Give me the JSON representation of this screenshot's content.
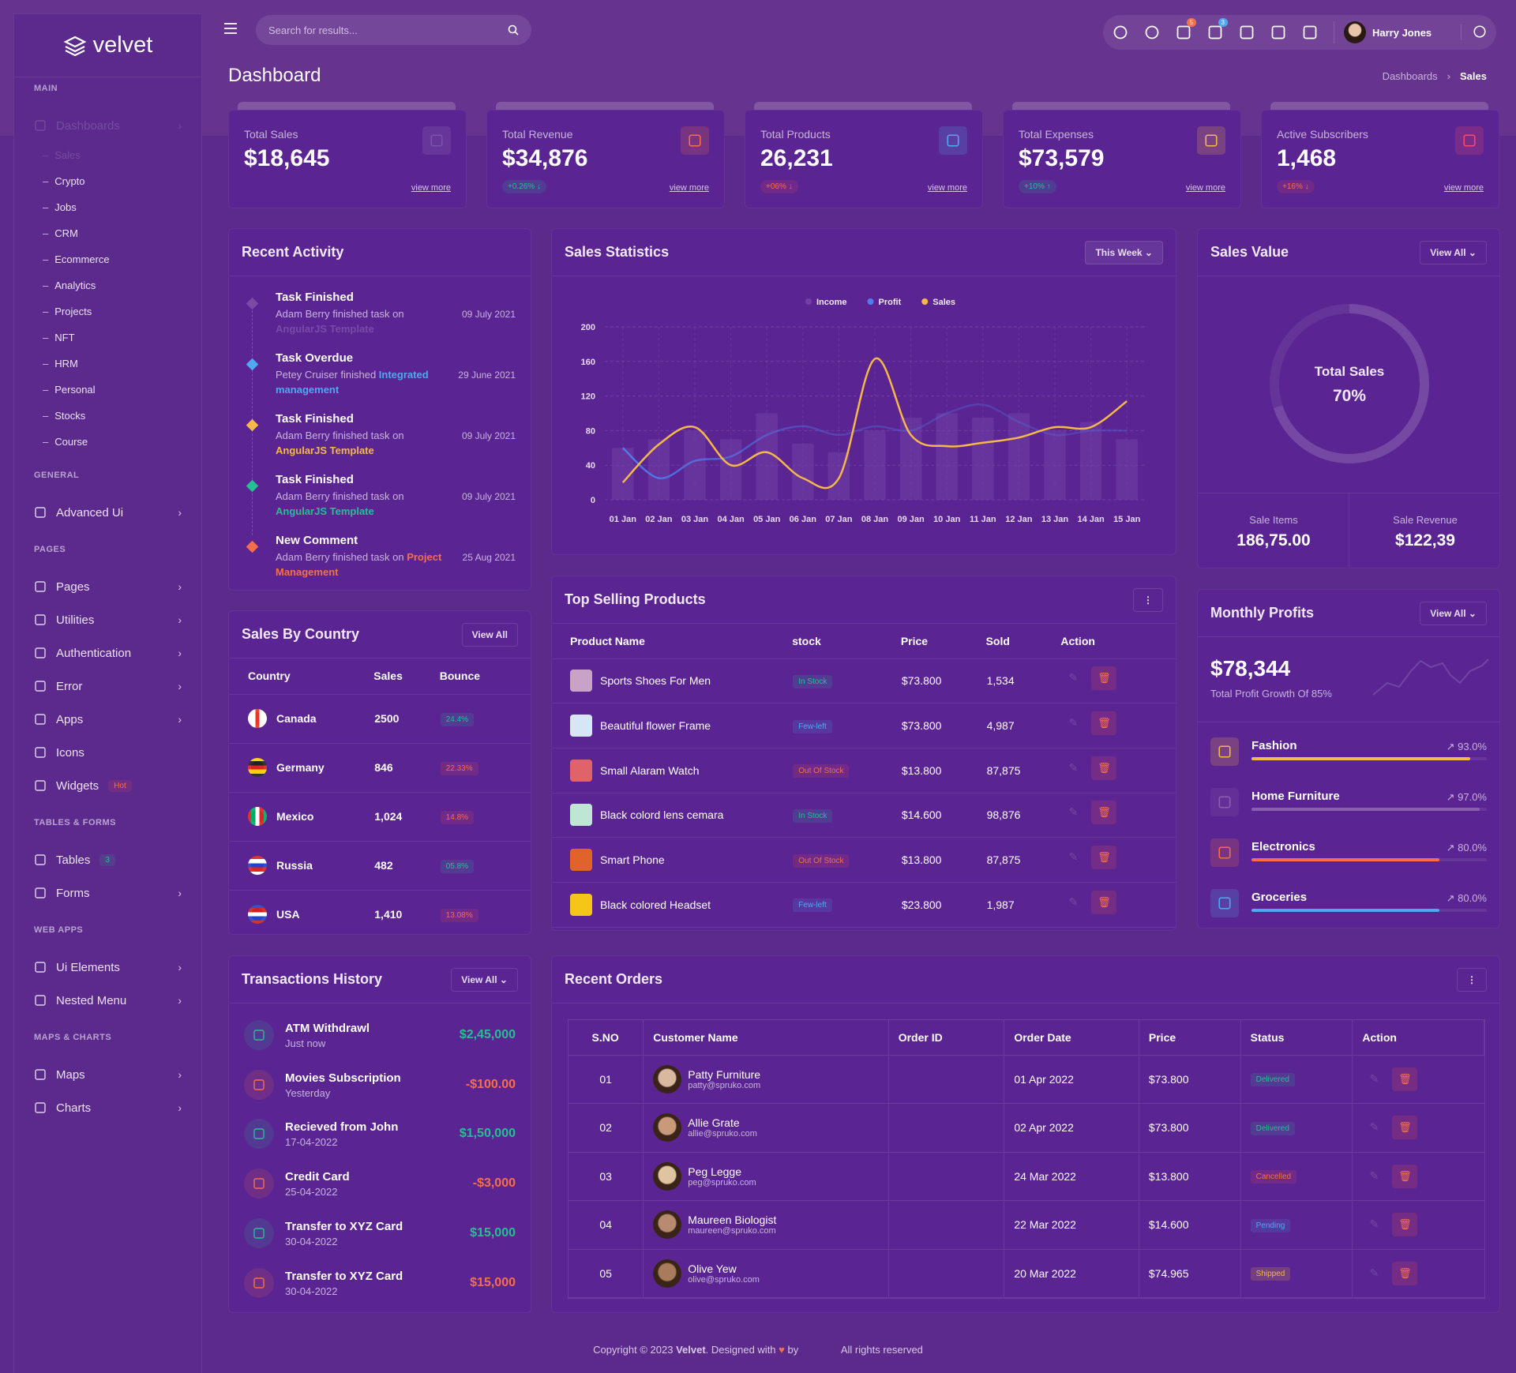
{
  "sidebar": {
    "logo": "velvet",
    "groups": [
      {
        "title": "MAIN",
        "items": [
          {
            "label": "Dashboards",
            "has_submenu": true,
            "children": [
              "Sales",
              "Crypto",
              "Jobs",
              "CRM",
              "Ecommerce",
              "Analytics",
              "Projects",
              "NFT",
              "HRM",
              "Personal",
              "Stocks",
              "Course"
            ]
          }
        ]
      },
      {
        "title": "GENERAL",
        "items": [
          {
            "label": "Advanced Ui",
            "has_submenu": true
          }
        ]
      },
      {
        "title": "PAGES",
        "items": [
          {
            "label": "Pages",
            "has_submenu": true
          },
          {
            "label": "Utilities",
            "has_submenu": true
          },
          {
            "label": "Authentication",
            "has_submenu": true
          },
          {
            "label": "Error",
            "has_submenu": true
          },
          {
            "label": "Apps",
            "has_submenu": true
          },
          {
            "label": "Icons"
          },
          {
            "label": "Widgets",
            "badge": "Hot"
          }
        ]
      },
      {
        "title": "TABLES & FORMS",
        "items": [
          {
            "label": "Tables",
            "badge": "3"
          },
          {
            "label": "Forms",
            "has_submenu": true
          }
        ]
      },
      {
        "title": "WEB APPS",
        "items": [
          {
            "label": "Ui Elements",
            "has_submenu": true
          },
          {
            "label": "Nested Menu",
            "has_submenu": true
          }
        ]
      },
      {
        "title": "MAPS & CHARTS",
        "items": [
          {
            "label": "Maps",
            "has_submenu": true
          },
          {
            "label": "Charts",
            "has_submenu": true
          }
        ]
      }
    ]
  },
  "header": {
    "search_placeholder": "Search for results...",
    "cart_badge": "5",
    "notification_badge": "3",
    "user_name": "Harry Jones"
  },
  "page_header": {
    "title": "Dashboard",
    "breadcrumb": [
      "Dashboards",
      "Sales"
    ]
  },
  "stat_cards": [
    {
      "label": "Total Sales",
      "value": "$18,645",
      "link": "view more"
    },
    {
      "label": "Total Revenue",
      "value": "$34,876",
      "change": "+0.26%",
      "trend": "down",
      "tone": "success",
      "link": "view more"
    },
    {
      "label": "Total Products",
      "value": "26,231",
      "change": "+06%",
      "trend": "down",
      "tone": "danger",
      "link": "view more"
    },
    {
      "label": "Total Expenses",
      "value": "$73,579",
      "change": "+10%",
      "trend": "up",
      "tone": "success",
      "link": "view more"
    },
    {
      "label": "Active Subscribers",
      "value": "1,468",
      "change": "+16%",
      "trend": "down",
      "tone": "danger",
      "link": "view more"
    }
  ],
  "recent_activity": {
    "title": "Recent Activity",
    "items": [
      {
        "title": "Task Finished",
        "text": "Adam Berry finished task on",
        "link": "AngularJS Template",
        "date": "09 July 2021",
        "color": "#7a4aa6"
      },
      {
        "title": "Task Overdue",
        "text": "Petey Cruiser finished",
        "link": "Integrated management",
        "date": "29 June 2021",
        "color": "#4fa8f0"
      },
      {
        "title": "Task Finished",
        "text": "Adam Berry finished task on",
        "link": "AngularJS Template",
        "date": "09 July 2021",
        "color": "#f5b849"
      },
      {
        "title": "Task Finished",
        "text": "Adam Berry finished task on",
        "link": "AngularJS Template",
        "date": "09 July 2021",
        "color": "#26bf94"
      },
      {
        "title": "New Comment",
        "text": "Adam Berry finished task on",
        "link": "Project Management",
        "date": "25 Aug 2021",
        "color": "#f56f4b"
      }
    ]
  },
  "chart_data": {
    "type": "line",
    "title": "Sales Statistics",
    "filter": "This Week",
    "categories": [
      "01 Jan",
      "02 Jan",
      "03 Jan",
      "04 Jan",
      "05 Jan",
      "06 Jan",
      "07 Jan",
      "08 Jan",
      "09 Jan",
      "10 Jan",
      "11 Jan",
      "12 Jan",
      "13 Jan",
      "14 Jan",
      "15 Jan"
    ],
    "series": [
      {
        "name": "Income",
        "type": "bar",
        "color": "#7340a6",
        "values": [
          60,
          70,
          80,
          70,
          100,
          65,
          55,
          80,
          95,
          100,
          95,
          100,
          80,
          90,
          70
        ]
      },
      {
        "name": "Profit",
        "type": "line",
        "color": "#4f7ef0",
        "values": [
          60,
          25,
          45,
          50,
          75,
          85,
          75,
          85,
          80,
          100,
          110,
          90,
          75,
          80,
          80
        ]
      },
      {
        "name": "Sales",
        "type": "line",
        "color": "#f5b849",
        "values": [
          20,
          64,
          84,
          40,
          55,
          25,
          25,
          163,
          75,
          62,
          66,
          72,
          84,
          84,
          114
        ]
      }
    ],
    "ylim": [
      0,
      200
    ],
    "yticks": [
      0,
      40,
      80,
      120,
      160,
      200
    ],
    "grid": true
  },
  "sales_value": {
    "title": "Sales Value",
    "button": "View All",
    "donut": {
      "label": "Total Sales",
      "value": 70,
      "value_label": "70%"
    },
    "stats": [
      {
        "label": "Sale Items",
        "value": "186,75.00"
      },
      {
        "label": "Sale Revenue",
        "value": "$122,39"
      }
    ]
  },
  "sales_by_country": {
    "title": "Sales By Country",
    "button": "View All",
    "columns": [
      "Country",
      "Sales",
      "Bounce"
    ],
    "rows": [
      {
        "country": "Canada",
        "sales": "2500",
        "bounce": "24.4%",
        "tone": "success"
      },
      {
        "country": "Germany",
        "sales": "846",
        "bounce": "22.33%",
        "tone": "danger"
      },
      {
        "country": "Mexico",
        "sales": "1,024",
        "bounce": "14.8%",
        "tone": "danger"
      },
      {
        "country": "Russia",
        "sales": "482",
        "bounce": "05.8%",
        "tone": "success"
      },
      {
        "country": "USA",
        "sales": "1,410",
        "bounce": "13.08%",
        "tone": "danger"
      }
    ]
  },
  "top_selling": {
    "title": "Top Selling Products",
    "columns": [
      "Product Name",
      "stock",
      "Price",
      "Sold",
      "Action"
    ],
    "rows": [
      {
        "name": "Sports Shoes For Men",
        "stock": "In Stock",
        "tone": "success",
        "price": "$73.800",
        "sold": "1,534"
      },
      {
        "name": "Beautiful flower Frame",
        "stock": "Few-left",
        "tone": "info",
        "price": "$73.800",
        "sold": "4,987"
      },
      {
        "name": "Small Alaram Watch",
        "stock": "Out Of Stock",
        "tone": "danger",
        "price": "$13.800",
        "sold": "87,875"
      },
      {
        "name": "Black colord lens cemara",
        "stock": "In Stock",
        "tone": "success",
        "price": "$14.600",
        "sold": "98,876"
      },
      {
        "name": "Smart Phone",
        "stock": "Out Of Stock",
        "tone": "danger",
        "price": "$13.800",
        "sold": "87,875"
      },
      {
        "name": "Black colored Headset",
        "stock": "Few-left",
        "tone": "info",
        "price": "$23.800",
        "sold": "1,987"
      }
    ]
  },
  "monthly_profits": {
    "title": "Monthly Profits",
    "button": "View All",
    "amount": "$78,344",
    "subtitle": "Total Profit Growth Of 85%",
    "categories": [
      {
        "name": "Fashion",
        "value": 93,
        "value_label": "93.0%",
        "color": "#f5b849"
      },
      {
        "name": "Home Furniture",
        "value": 97,
        "value_label": "97.0%",
        "color": "#8a5fb0"
      },
      {
        "name": "Electronics",
        "value": 80,
        "value_label": "80.0%",
        "color": "#f56f4b"
      },
      {
        "name": "Groceries",
        "value": 80,
        "value_label": "80.0%",
        "color": "#4fa8f0"
      }
    ]
  },
  "transactions": {
    "title": "Transactions History",
    "button": "View All",
    "items": [
      {
        "title": "ATM Withdrawl",
        "subtitle": "Just now",
        "amount": "$2,45,000",
        "tone": "success"
      },
      {
        "title": "Movies Subscription",
        "subtitle": "Yesterday",
        "amount": "-$100.00",
        "tone": "danger"
      },
      {
        "title": "Recieved from John",
        "subtitle": "17-04-2022",
        "amount": "$1,50,000",
        "tone": "success"
      },
      {
        "title": "Credit Card",
        "subtitle": "25-04-2022",
        "amount": "-$3,000",
        "tone": "danger"
      },
      {
        "title": "Transfer to XYZ Card",
        "subtitle": "30-04-2022",
        "amount": "$15,000",
        "tone": "success"
      },
      {
        "title": "Transfer to XYZ Card",
        "subtitle": "30-04-2022",
        "amount": "$15,000",
        "tone": "danger"
      }
    ]
  },
  "recent_orders": {
    "title": "Recent Orders",
    "columns": [
      "S.NO",
      "Customer Name",
      "Order ID",
      "Order Date",
      "Price",
      "Status",
      "Action"
    ],
    "rows": [
      {
        "sno": "01",
        "name": "Patty Furniture",
        "email": "patty@spruko.com",
        "date": "01 Apr 2022",
        "price": "$73.800",
        "status": "Delivered",
        "tone": "success"
      },
      {
        "sno": "02",
        "name": "Allie Grate",
        "email": "allie@spruko.com",
        "date": "02 Apr 2022",
        "price": "$73.800",
        "status": "Delivered",
        "tone": "success"
      },
      {
        "sno": "03",
        "name": "Peg Legge",
        "email": "peg@spruko.com",
        "date": "24 Mar 2022",
        "price": "$13.800",
        "status": "Cancelled",
        "tone": "danger"
      },
      {
        "sno": "04",
        "name": "Maureen Biologist",
        "email": "maureen@spruko.com",
        "date": "22 Mar 2022",
        "price": "$14.600",
        "status": "Pending",
        "tone": "info"
      },
      {
        "sno": "05",
        "name": "Olive Yew",
        "email": "olive@spruko.com",
        "date": "20 Mar 2022",
        "price": "$74.965",
        "status": "Shipped",
        "tone": "warning"
      }
    ]
  },
  "footer": {
    "copyright": "Copyright © 2023",
    "brand": "Velvet",
    "designed": ". Designed with",
    "by": "by",
    "rights": "All rights reserved"
  }
}
